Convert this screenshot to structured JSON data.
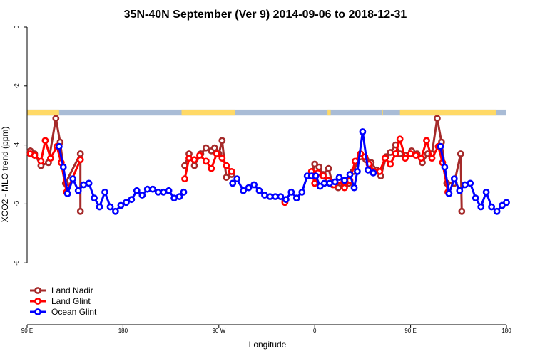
{
  "chart_data": {
    "type": "line",
    "title": "35N-40N September (Ver 9)   2014-09-06 to 2018-12-31",
    "xlabel": "Longitude",
    "ylabel": "XCO2 - MLO trend (ppm)",
    "xlim": [
      90,
      540
    ],
    "ylim": [
      -10,
      0
    ],
    "x_ticks": [
      {
        "value": 90,
        "label": "90 E"
      },
      {
        "value": 180,
        "label": "180"
      },
      {
        "value": 270,
        "label": "90 W"
      },
      {
        "value": 360,
        "label": "0"
      },
      {
        "value": 450,
        "label": "90 E"
      },
      {
        "value": 540,
        "label": "180"
      }
    ],
    "y_ticks": [
      {
        "value": 0,
        "label": "0"
      },
      {
        "value": -2,
        "label": "-2"
      },
      {
        "value": -4,
        "label": "-4"
      },
      {
        "value": -6,
        "label": "-6"
      },
      {
        "value": -8,
        "label": "-8"
      }
    ],
    "land_ocean_band": {
      "y_range": [
        -2.8,
        -3.0
      ],
      "land_color": "#FFD966",
      "ocean_color": "#A9BCD6",
      "land_segments": [
        [
          90,
          120
        ],
        [
          235,
          285
        ],
        [
          372,
          375
        ],
        [
          423,
          424
        ],
        [
          440,
          530
        ]
      ]
    },
    "legend": {
      "position": "bottom-left"
    },
    "series": [
      {
        "name": "Land Nadir",
        "color": "#A52A2A",
        "points": [
          [
            93,
            -4.2
          ],
          [
            97,
            -4.3
          ],
          [
            103,
            -4.7
          ],
          [
            110,
            -4.6
          ],
          [
            117,
            -3.1
          ],
          [
            121,
            -3.9
          ],
          [
            126,
            -5.3
          ],
          [
            140,
            -4.3
          ],
          [
            140,
            -6.25
          ],
          [
            238,
            -4.7
          ],
          [
            242,
            -4.3
          ],
          [
            247,
            -4.7
          ],
          [
            253,
            -4.3
          ],
          [
            258,
            -4.1
          ],
          [
            263,
            -4.2
          ],
          [
            266,
            -4.1
          ],
          [
            270,
            -4.3
          ],
          [
            273,
            -3.85
          ],
          [
            277,
            -5.1
          ],
          [
            282,
            -5.0
          ],
          [
            332,
            -5.9
          ],
          [
            357,
            -5.0
          ],
          [
            360,
            -4.65
          ],
          [
            364,
            -4.75
          ],
          [
            368,
            -5.0
          ],
          [
            373,
            -4.8
          ],
          [
            377,
            -5.35
          ],
          [
            382,
            -5.45
          ],
          [
            387,
            -5.4
          ],
          [
            392,
            -5.3
          ],
          [
            396,
            -4.9
          ],
          [
            403,
            -4.4
          ],
          [
            408,
            -4.5
          ],
          [
            413,
            -4.6
          ],
          [
            418,
            -4.85
          ],
          [
            422,
            -5.05
          ],
          [
            427,
            -4.4
          ],
          [
            431,
            -4.25
          ],
          [
            436,
            -4.0
          ],
          [
            440,
            -4.3
          ],
          [
            445,
            -4.35
          ],
          [
            451,
            -4.2
          ],
          [
            456,
            -4.3
          ],
          [
            461,
            -4.6
          ],
          [
            466,
            -4.3
          ],
          [
            470,
            -4.3
          ],
          [
            475,
            -3.1
          ],
          [
            479,
            -3.9
          ],
          [
            484,
            -5.3
          ],
          [
            491,
            -5.3
          ],
          [
            497,
            -4.3
          ],
          [
            498,
            -6.25
          ]
        ]
      },
      {
        "name": "Land Glint",
        "color": "#FF0000",
        "points": [
          [
            93,
            -4.3
          ],
          [
            97,
            -4.35
          ],
          [
            103,
            -4.55
          ],
          [
            107,
            -3.85
          ],
          [
            112,
            -4.45
          ],
          [
            118,
            -4.05
          ],
          [
            122,
            -4.6
          ],
          [
            127,
            -5.6
          ],
          [
            140,
            -4.5
          ],
          [
            238,
            -5.15
          ],
          [
            242,
            -4.45
          ],
          [
            247,
            -4.5
          ],
          [
            252,
            -4.35
          ],
          [
            258,
            -4.55
          ],
          [
            263,
            -4.8
          ],
          [
            268,
            -4.3
          ],
          [
            273,
            -4.45
          ],
          [
            277,
            -4.7
          ],
          [
            282,
            -4.9
          ],
          [
            332,
            -5.95
          ],
          [
            357,
            -4.9
          ],
          [
            360,
            -5.3
          ],
          [
            363,
            -4.95
          ],
          [
            368,
            -5.05
          ],
          [
            373,
            -5.2
          ],
          [
            378,
            -5.35
          ],
          [
            383,
            -5.2
          ],
          [
            388,
            -5.45
          ],
          [
            393,
            -5.2
          ],
          [
            398,
            -4.55
          ],
          [
            403,
            -4.3
          ],
          [
            407,
            -4.4
          ],
          [
            411,
            -4.65
          ],
          [
            416,
            -4.9
          ],
          [
            421,
            -4.9
          ],
          [
            426,
            -4.45
          ],
          [
            431,
            -4.65
          ],
          [
            436,
            -4.3
          ],
          [
            440,
            -3.8
          ],
          [
            445,
            -4.45
          ],
          [
            450,
            -4.3
          ],
          [
            455,
            -4.35
          ],
          [
            460,
            -4.45
          ],
          [
            465,
            -3.85
          ],
          [
            470,
            -4.45
          ],
          [
            476,
            -4.05
          ],
          [
            480,
            -4.6
          ],
          [
            485,
            -5.6
          ]
        ]
      },
      {
        "name": "Ocean Glint",
        "color": "#0000FF",
        "points": [
          [
            120,
            -4.05
          ],
          [
            124,
            -4.75
          ],
          [
            128,
            -5.65
          ],
          [
            133,
            -5.15
          ],
          [
            138,
            -5.55
          ],
          [
            143,
            -5.35
          ],
          [
            148,
            -5.3
          ],
          [
            153,
            -5.8
          ],
          [
            158,
            -6.1
          ],
          [
            163,
            -5.6
          ],
          [
            168,
            -6.1
          ],
          [
            173,
            -6.25
          ],
          [
            178,
            -6.05
          ],
          [
            183,
            -5.95
          ],
          [
            188,
            -5.85
          ],
          [
            193,
            -5.55
          ],
          [
            198,
            -5.7
          ],
          [
            203,
            -5.5
          ],
          [
            208,
            -5.5
          ],
          [
            213,
            -5.6
          ],
          [
            218,
            -5.6
          ],
          [
            223,
            -5.55
          ],
          [
            228,
            -5.8
          ],
          [
            233,
            -5.75
          ],
          [
            237,
            -5.6
          ],
          [
            283,
            -5.3
          ],
          [
            287,
            -5.15
          ],
          [
            293,
            -5.55
          ],
          [
            298,
            -5.45
          ],
          [
            303,
            -5.35
          ],
          [
            308,
            -5.55
          ],
          [
            313,
            -5.7
          ],
          [
            318,
            -5.75
          ],
          [
            323,
            -5.75
          ],
          [
            328,
            -5.75
          ],
          [
            333,
            -5.85
          ],
          [
            338,
            -5.6
          ],
          [
            343,
            -5.8
          ],
          [
            348,
            -5.6
          ],
          [
            353,
            -5.05
          ],
          [
            357,
            -5.05
          ],
          [
            361,
            -5.05
          ],
          [
            365,
            -5.4
          ],
          [
            369,
            -5.3
          ],
          [
            374,
            -5.3
          ],
          [
            379,
            -5.25
          ],
          [
            383,
            -5.1
          ],
          [
            388,
            -5.2
          ],
          [
            393,
            -5.0
          ],
          [
            397,
            -5.45
          ],
          [
            400,
            -4.9
          ],
          [
            405,
            -3.55
          ],
          [
            410,
            -4.85
          ],
          [
            415,
            -4.95
          ],
          [
            478,
            -4.05
          ],
          [
            482,
            -4.75
          ],
          [
            486,
            -5.65
          ],
          [
            491,
            -5.15
          ],
          [
            496,
            -5.55
          ],
          [
            501,
            -5.35
          ],
          [
            506,
            -5.3
          ],
          [
            511,
            -5.8
          ],
          [
            516,
            -6.1
          ],
          [
            521,
            -5.6
          ],
          [
            526,
            -6.1
          ],
          [
            531,
            -6.25
          ],
          [
            536,
            -6.05
          ],
          [
            540,
            -5.95
          ]
        ]
      }
    ]
  }
}
